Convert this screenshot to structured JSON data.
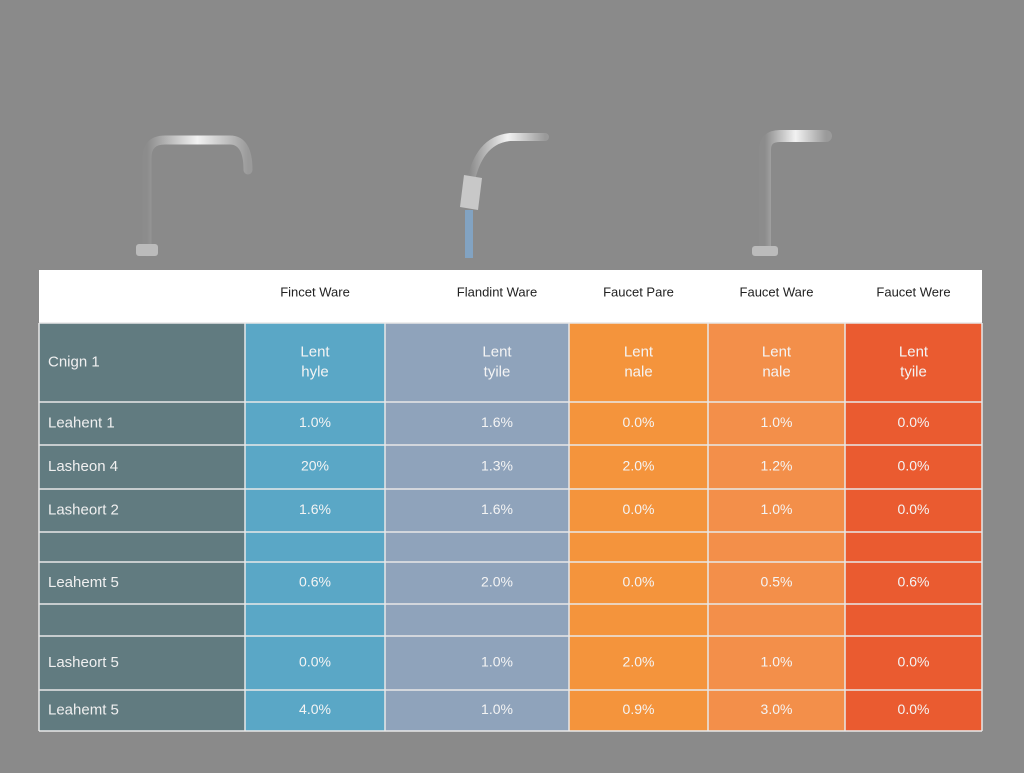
{
  "table": {
    "header": [
      "Fincet Ware",
      "Flandint Ware",
      "Faucet Pare",
      "Faucet Ware",
      "Faucet Were"
    ],
    "rows": [
      [
        "Cnign 1",
        [
          "Lent",
          "hyle"
        ],
        [
          "Lent",
          "tyile"
        ],
        [
          "Lent",
          "nale"
        ],
        [
          "Lent",
          "nale"
        ],
        [
          "Lent",
          "tyile"
        ]
      ],
      [
        "Leahent 1",
        "1.0%",
        "1.6%",
        "0.0%",
        "1.0%",
        "0.0%"
      ],
      [
        "Lasheon 4",
        "20%",
        "1.3%",
        "2.0%",
        "1.2%",
        "0.0%"
      ],
      [
        "Lasheort 2",
        "1.6%",
        "1.6%",
        "0.0%",
        "1.0%",
        "0.0%"
      ],
      [
        "Leahemt 5",
        "0.6%",
        "2.0%",
        "0.0%",
        "0.5%",
        "0.6%"
      ],
      [
        "Lasheort 5",
        "0.0%",
        "1.0%",
        "2.0%",
        "1.0%",
        "0.0%"
      ],
      [
        "Leahemt 5",
        "4.0%",
        "1.0%",
        "0.9%",
        "3.0%",
        "0.0%"
      ]
    ]
  }
}
